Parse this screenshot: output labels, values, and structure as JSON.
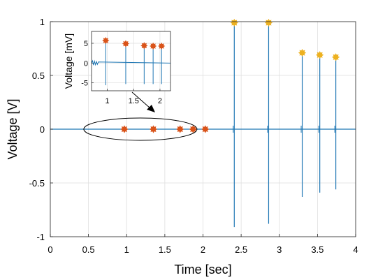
{
  "chart_data": {
    "type": "line",
    "title": "",
    "xlabel": "Time [sec]",
    "ylabel": "Voltage [V]",
    "xlim": [
      0,
      4
    ],
    "ylim": [
      -1,
      1
    ],
    "grid": true,
    "x_tick_labels": [
      "0",
      "0.5",
      "1",
      "1.5",
      "2",
      "2.5",
      "3",
      "3.5",
      "4"
    ],
    "y_tick_labels": [
      "-1",
      "-0.5",
      "0",
      "0.5",
      "1"
    ],
    "line_color": "#1f77b4",
    "small_spike_times": [
      0.97,
      1.35,
      1.7,
      1.87,
      2.03
    ],
    "small_spike_peak_mV": [
      5.7,
      4.9,
      4.4,
      4.3,
      4.3
    ],
    "small_spike_trough_mV": [
      -5.6,
      -5.3,
      -5.3,
      -5.3,
      -5.3
    ],
    "small_marker_color": "#d95319",
    "large_spikes": [
      {
        "t": 2.41,
        "peak": 0.99,
        "trough": -0.91
      },
      {
        "t": 2.86,
        "peak": 0.99,
        "trough": -0.88
      },
      {
        "t": 3.3,
        "peak": 0.71,
        "trough": -0.63
      },
      {
        "t": 3.53,
        "peak": 0.69,
        "trough": -0.59
      },
      {
        "t": 3.74,
        "peak": 0.67,
        "trough": -0.56
      }
    ],
    "large_marker_color": "#edb120",
    "inset": {
      "ylabel": "Voltage [mV]",
      "xlim": [
        0.7,
        2.2
      ],
      "ylim": [
        -7,
        8
      ],
      "x_tick_labels": [
        "1",
        "1.5",
        "2"
      ],
      "y_tick_labels": [
        "5",
        "0",
        "-5"
      ]
    }
  }
}
